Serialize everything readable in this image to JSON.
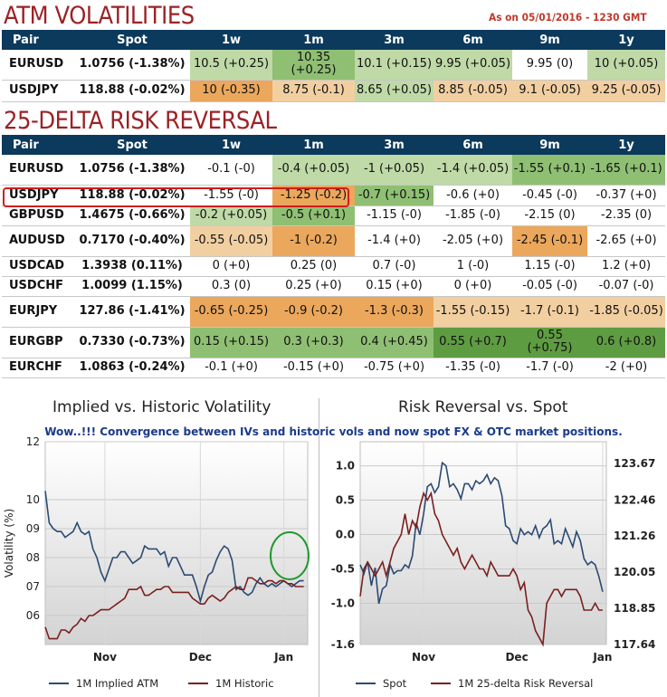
{
  "atm": {
    "title": "ATM VOLATILITIES",
    "as_of": "As on 05/01/2016 - 1230 GMT",
    "headers": [
      "Pair",
      "Spot",
      "1w",
      "1m",
      "3m",
      "6m",
      "9m",
      "1y"
    ],
    "rows": [
      {
        "pair": "EURUSD",
        "spot": "1.0756 (-1.38%)",
        "cells": [
          "10.5 (+0.25)",
          "10.35 (+0.25)",
          "10.1 (+0.15)",
          "9.95 (+0.05)",
          "9.95 (0)",
          "10 (+0.05)"
        ],
        "shade": [
          "g1",
          "g2",
          "g1",
          "g1",
          "",
          "g1"
        ]
      },
      {
        "pair": "USDJPY",
        "spot": "118.88 (-0.02%)",
        "cells": [
          "10 (-0.35)",
          "8.75 (-0.1)",
          "8.65 (+0.05)",
          "8.85 (-0.05)",
          "9.1 (-0.05)",
          "9.25 (-0.05)"
        ],
        "shade": [
          "o2",
          "o1",
          "g1",
          "o1",
          "o1",
          "o1"
        ]
      }
    ]
  },
  "rr": {
    "title": "25-DELTA RISK REVERSAL",
    "headers": [
      "Pair",
      "Spot",
      "1w",
      "1m",
      "3m",
      "6m",
      "9m",
      "1y"
    ],
    "rows": [
      {
        "pair": "EURUSD",
        "spot": "1.0756 (-1.38%)",
        "cells": [
          "-0.1 (-0)",
          "-0.4 (+0.05)",
          "-1 (+0.05)",
          "-1.4 (+0.05)",
          "-1.55 (+0.1)",
          "-1.65 (+0.1)"
        ],
        "shade": [
          "",
          "g1",
          "g1",
          "g1",
          "g2",
          "g2"
        ]
      },
      {
        "pair": "USDJPY",
        "spot": "118.88 (-0.02%)",
        "cells": [
          "-1.55 (-0)",
          "-1.25 (-0.2)",
          "-0.7 (+0.15)",
          "-0.6 (+0)",
          "-0.45 (-0)",
          "-0.37 (+0)"
        ],
        "shade": [
          "",
          "o2",
          "g2",
          "",
          "",
          ""
        ]
      },
      {
        "pair": "GBPUSD",
        "spot": "1.4675 (-0.66%)",
        "cells": [
          "-0.2 (+0.05)",
          "-0.5 (+0.1)",
          "-1.15 (-0)",
          "-1.85 (-0)",
          "-2.15 (0)",
          "-2.35 (0)"
        ],
        "shade": [
          "g1",
          "g2",
          "",
          "",
          "",
          ""
        ]
      },
      {
        "pair": "AUDUSD",
        "spot": "0.7170 (-0.40%)",
        "cells": [
          "-0.55 (-0.05)",
          "-1 (-0.2)",
          "-1.4 (+0)",
          "-2.05 (+0)",
          "-2.45 (-0.1)",
          "-2.65 (+0)"
        ],
        "shade": [
          "o1",
          "o2",
          "",
          "",
          "o2",
          ""
        ]
      },
      {
        "pair": "USDCAD",
        "spot": "1.3938 (0.11%)",
        "cells": [
          "0 (+0)",
          "0.25 (0)",
          "0.7 (-0)",
          "1 (-0)",
          "1.15 (-0)",
          "1.2 (+0)"
        ],
        "shade": [
          "",
          "",
          "",
          "",
          "",
          ""
        ]
      },
      {
        "pair": "USDCHF",
        "spot": "1.0099 (1.15%)",
        "cells": [
          "0.3 (0)",
          "0.25 (+0)",
          "0.15 (+0)",
          "0 (+0)",
          "-0.05 (-0)",
          "-0.07 (-0)"
        ],
        "shade": [
          "",
          "",
          "",
          "",
          "",
          ""
        ]
      },
      {
        "pair": "EURJPY",
        "spot": "127.86 (-1.41%)",
        "cells": [
          "-0.65 (-0.25)",
          "-0.9 (-0.2)",
          "-1.3 (-0.3)",
          "-1.55 (-0.15)",
          "-1.7 (-0.1)",
          "-1.85 (-0.05)"
        ],
        "shade": [
          "o2",
          "o2",
          "o2",
          "o1",
          "o1",
          "o1"
        ]
      },
      {
        "pair": "EURGBP",
        "spot": "0.7330 (-0.73%)",
        "cells": [
          "0.15 (+0.15)",
          "0.3 (+0.3)",
          "0.4 (+0.45)",
          "0.55 (+0.7)",
          "0.55 (+0.75)",
          "0.6 (+0.8)"
        ],
        "shade": [
          "g2",
          "g2",
          "g2",
          "g3",
          "g3",
          "g3"
        ]
      },
      {
        "pair": "EURCHF",
        "spot": "1.0863 (-0.24%)",
        "cells": [
          "-0.1 (+0)",
          "-0.15 (+0)",
          "-0.75 (+0)",
          "-1.35 (-0)",
          "-1.7 (-0)",
          "-2 (+0)"
        ],
        "shade": [
          "",
          "",
          "",
          "",
          "",
          ""
        ]
      }
    ]
  },
  "note": "Wow..!!! Convergence between IVs and historic vols and now spot FX & OTC market positions.",
  "colors": {
    "blue": "#2b4a73",
    "red": "#7a1f1f",
    "header": "#0c3a5c",
    "highlight": "#d01e1e",
    "circle": "#1f9a2e"
  },
  "chart_data": [
    {
      "type": "line",
      "title": "Implied vs. Historic Volatility",
      "ylabel": "Volatility (%)",
      "ylim": [
        5.0,
        12.0
      ],
      "yticks": [
        6,
        7,
        8,
        9,
        10,
        12
      ],
      "ytick_labels": [
        "06",
        "07",
        "08",
        "09",
        "10",
        "12"
      ],
      "xlim": [
        0,
        66
      ],
      "xticks": [
        15,
        39,
        60
      ],
      "xtick_labels": [
        "Nov",
        "Dec",
        "Jan"
      ],
      "legend": "bottom",
      "grid": true,
      "series": [
        {
          "name": "1M Implied ATM",
          "color": "#2b4a73",
          "x": [
            0,
            1,
            2,
            3,
            4,
            5,
            6,
            7,
            8,
            9,
            10,
            11,
            12,
            13,
            14,
            15,
            16,
            17,
            18,
            19,
            20,
            21,
            22,
            23,
            24,
            25,
            26,
            27,
            28,
            29,
            30,
            31,
            32,
            33,
            34,
            35,
            36,
            37,
            38,
            39,
            40,
            41,
            42,
            43,
            44,
            45,
            46,
            47,
            48,
            49,
            50,
            51,
            52,
            53,
            54,
            55,
            56,
            57,
            58,
            59,
            60,
            61,
            62,
            63,
            64,
            65
          ],
          "y": [
            10.3,
            9.2,
            9.0,
            8.9,
            8.9,
            8.7,
            8.8,
            8.9,
            9.2,
            8.9,
            8.8,
            8.9,
            8.3,
            8.0,
            7.5,
            7.2,
            7.6,
            8.0,
            8.0,
            8.2,
            8.2,
            8.0,
            7.8,
            7.9,
            8.0,
            8.4,
            8.3,
            8.3,
            8.3,
            8.1,
            8.2,
            7.7,
            8.0,
            8.0,
            7.7,
            7.4,
            7.4,
            7.4,
            7.0,
            6.5,
            7.0,
            7.4,
            7.5,
            7.9,
            8.2,
            8.4,
            8.3,
            7.9,
            6.9,
            7.0,
            6.8,
            6.7,
            6.8,
            7.1,
            7.3,
            7.1,
            7.0,
            7.1,
            7.0,
            7.1,
            7.2,
            7.1,
            7.0,
            7.1,
            7.2,
            7.2
          ]
        },
        {
          "name": "1M Historic",
          "color": "#7a1f1f",
          "x": [
            0,
            1,
            2,
            3,
            4,
            5,
            6,
            7,
            8,
            9,
            10,
            11,
            12,
            13,
            14,
            15,
            16,
            17,
            18,
            19,
            20,
            21,
            22,
            23,
            24,
            25,
            26,
            27,
            28,
            29,
            30,
            31,
            32,
            33,
            34,
            35,
            36,
            37,
            38,
            39,
            40,
            41,
            42,
            43,
            44,
            45,
            46,
            47,
            48,
            49,
            50,
            51,
            52,
            53,
            54,
            55,
            56,
            57,
            58,
            59,
            60,
            61,
            62,
            63,
            64,
            65
          ],
          "y": [
            5.6,
            5.2,
            5.2,
            5.2,
            5.5,
            5.5,
            5.4,
            5.6,
            5.7,
            5.9,
            5.8,
            6.0,
            6.0,
            6.1,
            6.2,
            6.2,
            6.2,
            6.3,
            6.4,
            6.5,
            6.6,
            6.9,
            6.9,
            6.9,
            7.0,
            6.7,
            6.7,
            6.8,
            6.9,
            6.9,
            7.0,
            7.0,
            6.8,
            6.8,
            6.8,
            6.8,
            6.8,
            6.6,
            6.5,
            6.4,
            6.4,
            6.6,
            6.7,
            6.6,
            6.5,
            6.6,
            6.8,
            6.9,
            7.0,
            6.9,
            6.9,
            7.3,
            7.3,
            7.2,
            7.1,
            7.1,
            7.2,
            7.2,
            7.1,
            7.2,
            7.2,
            7.1,
            7.1,
            7.0,
            7.0,
            7.0
          ]
        }
      ]
    },
    {
      "type": "line",
      "title": "Risk Reversal vs. Spot",
      "ylim_left": [
        -1.6,
        1.35
      ],
      "yticks_left": [
        -1.6,
        -1.0,
        -0.5,
        0.0,
        0.5,
        1.0
      ],
      "ylim_right": [
        117.64,
        124.4
      ],
      "yticks_right": [
        117.64,
        118.85,
        120.05,
        121.26,
        122.46,
        123.67
      ],
      "xlim": [
        0,
        66
      ],
      "xticks": [
        17,
        42,
        65
      ],
      "xtick_labels": [
        "Nov",
        "Dec",
        "Jan"
      ],
      "legend": "bottom",
      "grid": true,
      "series": [
        {
          "name": "Spot",
          "axis": "right",
          "color": "#2b4a73",
          "x": [
            0,
            1,
            2,
            3,
            4,
            5,
            6,
            7,
            8,
            9,
            10,
            11,
            12,
            13,
            14,
            15,
            16,
            17,
            18,
            19,
            20,
            21,
            22,
            23,
            24,
            25,
            26,
            27,
            28,
            29,
            30,
            31,
            32,
            33,
            34,
            35,
            36,
            37,
            38,
            39,
            40,
            41,
            42,
            43,
            44,
            45,
            46,
            47,
            48,
            49,
            50,
            51,
            52,
            53,
            54,
            55,
            56,
            57,
            58,
            59,
            60,
            61,
            62,
            63,
            64,
            65
          ],
          "y": [
            120.3,
            120.0,
            120.4,
            119.6,
            120.2,
            119.0,
            119.5,
            119.6,
            120.3,
            120.0,
            120.1,
            120.1,
            120.3,
            120.2,
            120.6,
            121.7,
            121.3,
            122.0,
            122.9,
            123.0,
            122.7,
            122.9,
            123.7,
            123.6,
            122.9,
            123.0,
            122.8,
            122.5,
            123.0,
            123.0,
            122.8,
            123.1,
            123.0,
            123.1,
            123.3,
            123.0,
            123.2,
            123.1,
            122.6,
            121.6,
            121.5,
            121.1,
            121.0,
            121.5,
            121.3,
            121.4,
            121.3,
            121.6,
            121.2,
            121.5,
            121.6,
            121.8,
            121.0,
            121.1,
            121.0,
            121.5,
            121.2,
            120.9,
            121.4,
            121.1,
            120.5,
            120.3,
            120.4,
            120.3,
            119.9,
            119.4
          ]
        },
        {
          "name": "1M 25-delta Risk Reversal",
          "axis": "left",
          "color": "#7a1f1f",
          "x": [
            0,
            1,
            2,
            3,
            4,
            5,
            6,
            7,
            8,
            9,
            10,
            11,
            12,
            13,
            14,
            15,
            16,
            17,
            18,
            19,
            20,
            21,
            22,
            23,
            24,
            25,
            26,
            27,
            28,
            29,
            30,
            31,
            32,
            33,
            34,
            35,
            36,
            37,
            38,
            39,
            40,
            41,
            42,
            43,
            44,
            45,
            46,
            47,
            48,
            49,
            50,
            51,
            52,
            53,
            54,
            55,
            56,
            57,
            58,
            59,
            60,
            61,
            62,
            63,
            64,
            65
          ],
          "y": [
            -0.9,
            -0.5,
            -0.4,
            -0.5,
            -0.6,
            -0.5,
            -0.4,
            -0.6,
            -0.4,
            -0.2,
            -0.1,
            0.0,
            0.3,
            0.0,
            0.2,
            0.1,
            0.4,
            0.6,
            0.5,
            0.6,
            0.3,
            0.2,
            0.0,
            -0.1,
            -0.2,
            -0.3,
            -0.2,
            -0.4,
            -0.5,
            -0.4,
            -0.3,
            -0.4,
            -0.5,
            -0.5,
            -0.6,
            -0.4,
            -0.5,
            -0.6,
            -0.6,
            -0.6,
            -0.6,
            -0.5,
            -0.6,
            -0.8,
            -0.7,
            -1.1,
            -1.2,
            -1.4,
            -1.5,
            -1.6,
            -1.0,
            -0.9,
            -0.8,
            -0.8,
            -0.9,
            -0.8,
            -0.8,
            -0.8,
            -0.8,
            -0.9,
            -1.1,
            -1.1,
            -1.1,
            -1.0,
            -1.1,
            -1.1
          ]
        }
      ]
    }
  ]
}
